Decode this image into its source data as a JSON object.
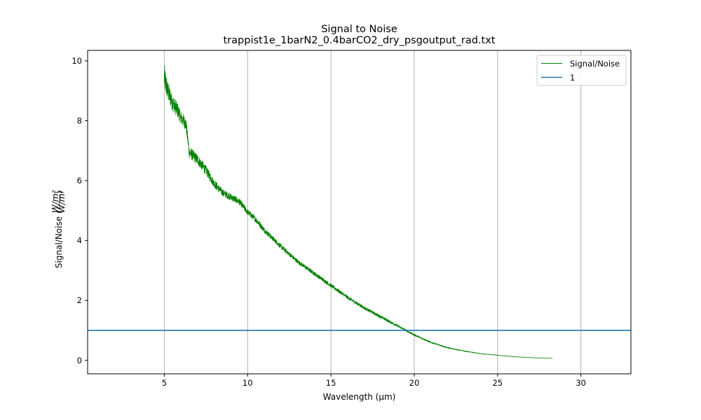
{
  "chart_data": {
    "type": "line",
    "title": "Signal to Noise",
    "subtitle": "trappist1e_1barN2_0.4barCO2_dry_psgoutput_rad.txt",
    "xlabel": "Wavelength (μm)",
    "ylabel": "Signal/Noise",
    "ylabel_unit_numerator": "W/m²",
    "ylabel_unit_denominator": "W/m²",
    "xlim": [
      0.4,
      33.0
    ],
    "ylim": [
      -0.45,
      10.35
    ],
    "xticks": [
      5,
      10,
      15,
      20,
      25,
      30
    ],
    "yticks": [
      0,
      2,
      4,
      6,
      8,
      10
    ],
    "grid": "vertical",
    "legend_position": "top-right",
    "series": [
      {
        "name": "Signal/Noise",
        "color": "#008000",
        "style": "noisy-line",
        "x": [
          5.0,
          5.2,
          5.5,
          5.8,
          6.0,
          6.3,
          6.5,
          7.0,
          7.5,
          8.0,
          8.5,
          9.0,
          9.5,
          10.0,
          10.5,
          11.0,
          12.0,
          13.0,
          14.0,
          15.0,
          16.0,
          17.0,
          18.0,
          19.0,
          19.5,
          20.0,
          21.0,
          22.0,
          23.0,
          24.0,
          25.0,
          26.0,
          27.0,
          28.0,
          28.3
        ],
        "y": [
          9.45,
          9.0,
          8.6,
          8.35,
          8.1,
          7.9,
          6.95,
          6.7,
          6.35,
          5.9,
          5.6,
          5.45,
          5.3,
          4.95,
          4.7,
          4.35,
          3.8,
          3.3,
          2.9,
          2.5,
          2.1,
          1.75,
          1.45,
          1.15,
          1.0,
          0.85,
          0.6,
          0.42,
          0.31,
          0.22,
          0.17,
          0.12,
          0.09,
          0.07,
          0.07
        ],
        "noise": [
          0.45,
          0.35,
          0.28,
          0.25,
          0.22,
          0.22,
          0.2,
          0.18,
          0.16,
          0.14,
          0.12,
          0.12,
          0.11,
          0.1,
          0.1,
          0.09,
          0.08,
          0.07,
          0.07,
          0.06,
          0.06,
          0.05,
          0.05,
          0.04,
          0.035,
          0.03,
          0.025,
          0.018,
          0.012,
          0.008,
          0.006,
          0.005,
          0.004,
          0.003,
          0.003
        ]
      },
      {
        "name": "1",
        "color": "#1f77b4",
        "style": "hline",
        "y": 1
      }
    ]
  }
}
